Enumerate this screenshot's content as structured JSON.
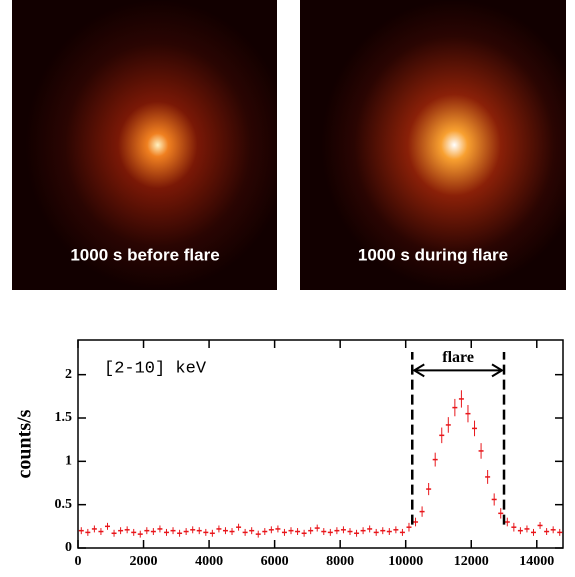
{
  "images": [
    {
      "label": "1000 s  before flare"
    },
    {
      "label": "1000 s during flare"
    }
  ],
  "chart_data": {
    "type": "errorbar",
    "y_label": "counts/s",
    "annotation": "[2-10] keV",
    "flare_label": "flare",
    "flare_interval": [
      10200,
      13000
    ],
    "color": "#e8161b",
    "xlim": [
      0,
      14800
    ],
    "ylim": [
      0,
      2.4
    ],
    "xticks": [
      0,
      2000,
      4000,
      6000,
      8000,
      10000,
      12000,
      14000
    ],
    "yticks": [
      0,
      0.5,
      1,
      1.5,
      2
    ],
    "x": [
      100,
      300,
      500,
      700,
      900,
      1100,
      1300,
      1500,
      1700,
      1900,
      2100,
      2300,
      2500,
      2700,
      2900,
      3100,
      3300,
      3500,
      3700,
      3900,
      4100,
      4300,
      4500,
      4700,
      4900,
      5100,
      5300,
      5500,
      5700,
      5900,
      6100,
      6300,
      6500,
      6700,
      6900,
      7100,
      7300,
      7500,
      7700,
      7900,
      8100,
      8300,
      8500,
      8700,
      8900,
      9100,
      9300,
      9500,
      9700,
      9900,
      10100,
      10300,
      10500,
      10700,
      10900,
      11100,
      11300,
      11500,
      11700,
      11900,
      12100,
      12300,
      12500,
      12700,
      12900,
      13100,
      13300,
      13500,
      13700,
      13900,
      14100,
      14300,
      14500,
      14700
    ],
    "values": [
      0.2,
      0.18,
      0.22,
      0.19,
      0.25,
      0.17,
      0.2,
      0.21,
      0.18,
      0.16,
      0.2,
      0.19,
      0.22,
      0.18,
      0.2,
      0.17,
      0.19,
      0.21,
      0.2,
      0.18,
      0.17,
      0.22,
      0.2,
      0.19,
      0.24,
      0.18,
      0.2,
      0.16,
      0.19,
      0.21,
      0.22,
      0.18,
      0.2,
      0.19,
      0.17,
      0.2,
      0.23,
      0.19,
      0.18,
      0.2,
      0.21,
      0.19,
      0.17,
      0.2,
      0.22,
      0.18,
      0.2,
      0.19,
      0.21,
      0.18,
      0.24,
      0.3,
      0.42,
      0.68,
      1.02,
      1.3,
      1.42,
      1.62,
      1.72,
      1.55,
      1.38,
      1.12,
      0.82,
      0.56,
      0.4,
      0.3,
      0.24,
      0.2,
      0.22,
      0.18,
      0.26,
      0.19,
      0.21,
      0.18
    ],
    "errors": [
      0.04,
      0.04,
      0.04,
      0.04,
      0.04,
      0.04,
      0.04,
      0.04,
      0.04,
      0.04,
      0.04,
      0.04,
      0.04,
      0.04,
      0.04,
      0.04,
      0.04,
      0.04,
      0.04,
      0.04,
      0.04,
      0.04,
      0.04,
      0.04,
      0.04,
      0.04,
      0.04,
      0.04,
      0.04,
      0.04,
      0.04,
      0.04,
      0.04,
      0.04,
      0.04,
      0.04,
      0.04,
      0.04,
      0.04,
      0.04,
      0.04,
      0.04,
      0.04,
      0.04,
      0.04,
      0.04,
      0.04,
      0.04,
      0.04,
      0.04,
      0.05,
      0.05,
      0.06,
      0.07,
      0.08,
      0.09,
      0.09,
      0.1,
      0.1,
      0.1,
      0.09,
      0.09,
      0.08,
      0.07,
      0.06,
      0.05,
      0.05,
      0.04,
      0.04,
      0.04,
      0.04,
      0.04,
      0.04,
      0.04
    ]
  }
}
